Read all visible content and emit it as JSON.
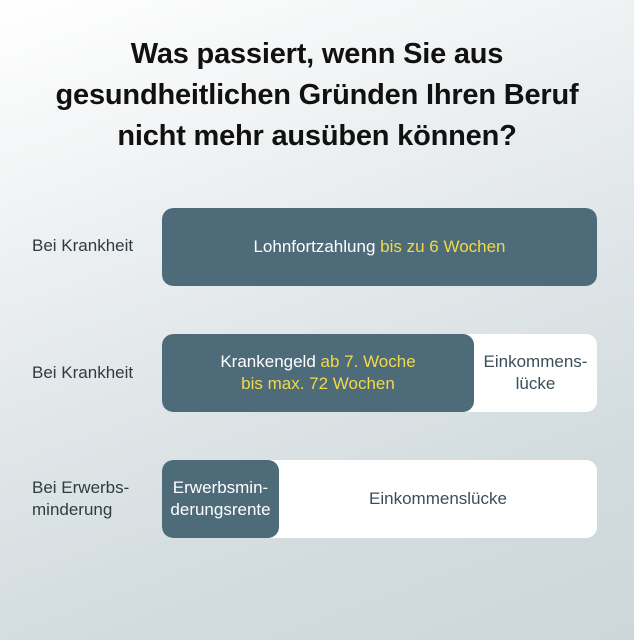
{
  "title": {
    "line1": "Was passiert, wenn Sie aus",
    "line2": "gesundheitlichen Gründen Ihren Beruf",
    "line3": "nicht mehr ausüben können?"
  },
  "rows": [
    {
      "label_lines": [
        "Bei Krankheit"
      ],
      "dark_segment": {
        "text": "Lohnfortzahlung",
        "highlight": "bis zu 6 Wochen"
      }
    },
    {
      "label_lines": [
        "Bei Krankheit"
      ],
      "dark_segment": {
        "line1_text": "Krankengeld",
        "line1_highlight": "ab 7. Woche",
        "line2_highlight": "bis max. 72 Wochen"
      },
      "light_segment": {
        "line1": "Einkommens-",
        "line2": "lücke"
      }
    },
    {
      "label_lines": [
        "Bei Erwerbs-",
        "minderung"
      ],
      "dark_segment": {
        "line1": "Erwerbsmin-",
        "line2": "derungsrente"
      },
      "light_segment": {
        "text": "Einkommenslücke"
      }
    }
  ],
  "colors": {
    "bar_dark": "#4d6b78",
    "highlight": "#f1d94a",
    "bar_light": "#ffffff",
    "label_text": "#2e3c42"
  }
}
